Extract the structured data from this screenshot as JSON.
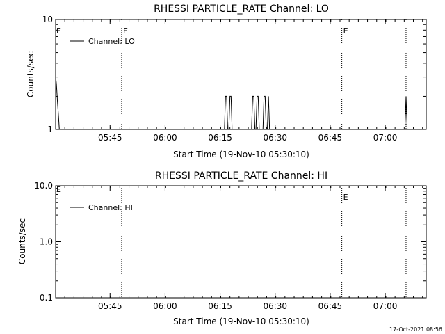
{
  "footer_timestamp": "17-Oct-2021 08:56",
  "chart_data": [
    {
      "type": "line",
      "title": "RHESSI PARTICLE_RATE Channel: LO",
      "xlabel": "Start Time (19-Nov-10 05:30:10)",
      "ylabel": "Counts/sec",
      "x_unit": "minutes after 05:30:10",
      "xlim": [
        0,
        101
      ],
      "ylim": [
        1,
        10
      ],
      "y_scale": "log",
      "y_tick_labels": [
        {
          "value": 1,
          "label": "1"
        },
        {
          "value": 10,
          "label": "10"
        }
      ],
      "x_tick_labels": [
        {
          "value": 14.83,
          "label": "05:45"
        },
        {
          "value": 29.83,
          "label": "06:00"
        },
        {
          "value": 44.83,
          "label": "06:15"
        },
        {
          "value": 59.83,
          "label": "06:30"
        },
        {
          "value": 74.83,
          "label": "06:45"
        },
        {
          "value": 89.83,
          "label": "07:00"
        }
      ],
      "x_minor_step": 2.5,
      "markers": [
        {
          "x": 18.0,
          "label": "E"
        },
        {
          "x": 78.0,
          "label": "E"
        },
        {
          "x": 95.5,
          "label": ""
        }
      ],
      "edge_label": "E",
      "legend": {
        "placement": "top-left",
        "entries": [
          "Channel: LO"
        ]
      },
      "series": [
        {
          "name": "Channel: LO",
          "x": [
            0.0,
            0.2,
            0.5,
            0.8,
            1.0,
            46.0,
            46.3,
            46.6,
            46.9,
            47.2,
            47.5,
            47.8,
            48.1,
            53.4,
            53.7,
            54.0,
            54.3,
            54.6,
            54.9,
            55.2,
            55.5,
            55.8,
            56.5,
            56.8,
            57.1,
            57.4,
            57.7,
            58.0,
            58.3,
            95.2,
            95.5,
            95.8
          ],
          "y": [
            3.0,
            2.6,
            1.8,
            1.3,
            1.0,
            1.0,
            2.0,
            2.0,
            1.0,
            1.0,
            2.0,
            2.0,
            1.0,
            1.0,
            2.0,
            2.0,
            1.0,
            1.0,
            2.0,
            2.0,
            1.0,
            1.0,
            1.0,
            2.0,
            2.0,
            1.0,
            1.0,
            2.0,
            1.0,
            1.0,
            2.0,
            1.0
          ]
        }
      ]
    },
    {
      "type": "line",
      "title": "RHESSI PARTICLE_RATE Channel: HI",
      "xlabel": "Start Time (19-Nov-10 05:30:10)",
      "ylabel": "Counts/sec",
      "x_unit": "minutes after 05:30:10",
      "xlim": [
        0,
        101
      ],
      "ylim": [
        0.1,
        10
      ],
      "y_scale": "log",
      "y_tick_labels": [
        {
          "value": 0.1,
          "label": "0.1"
        },
        {
          "value": 1,
          "label": "1.0"
        },
        {
          "value": 10,
          "label": "10.0"
        }
      ],
      "x_tick_labels": [
        {
          "value": 14.83,
          "label": "05:45"
        },
        {
          "value": 29.83,
          "label": "06:00"
        },
        {
          "value": 44.83,
          "label": "06:15"
        },
        {
          "value": 59.83,
          "label": "06:30"
        },
        {
          "value": 74.83,
          "label": "06:45"
        },
        {
          "value": 89.83,
          "label": "07:00"
        }
      ],
      "x_minor_step": 2.5,
      "markers": [
        {
          "x": 18.0,
          "label": ""
        },
        {
          "x": 78.0,
          "label": "E"
        },
        {
          "x": 95.5,
          "label": ""
        }
      ],
      "edge_label": "E",
      "legend": {
        "placement": "top-left",
        "entries": [
          "Channel: HI"
        ]
      },
      "series": [
        {
          "name": "Channel: HI",
          "x": [],
          "y": []
        }
      ]
    }
  ]
}
